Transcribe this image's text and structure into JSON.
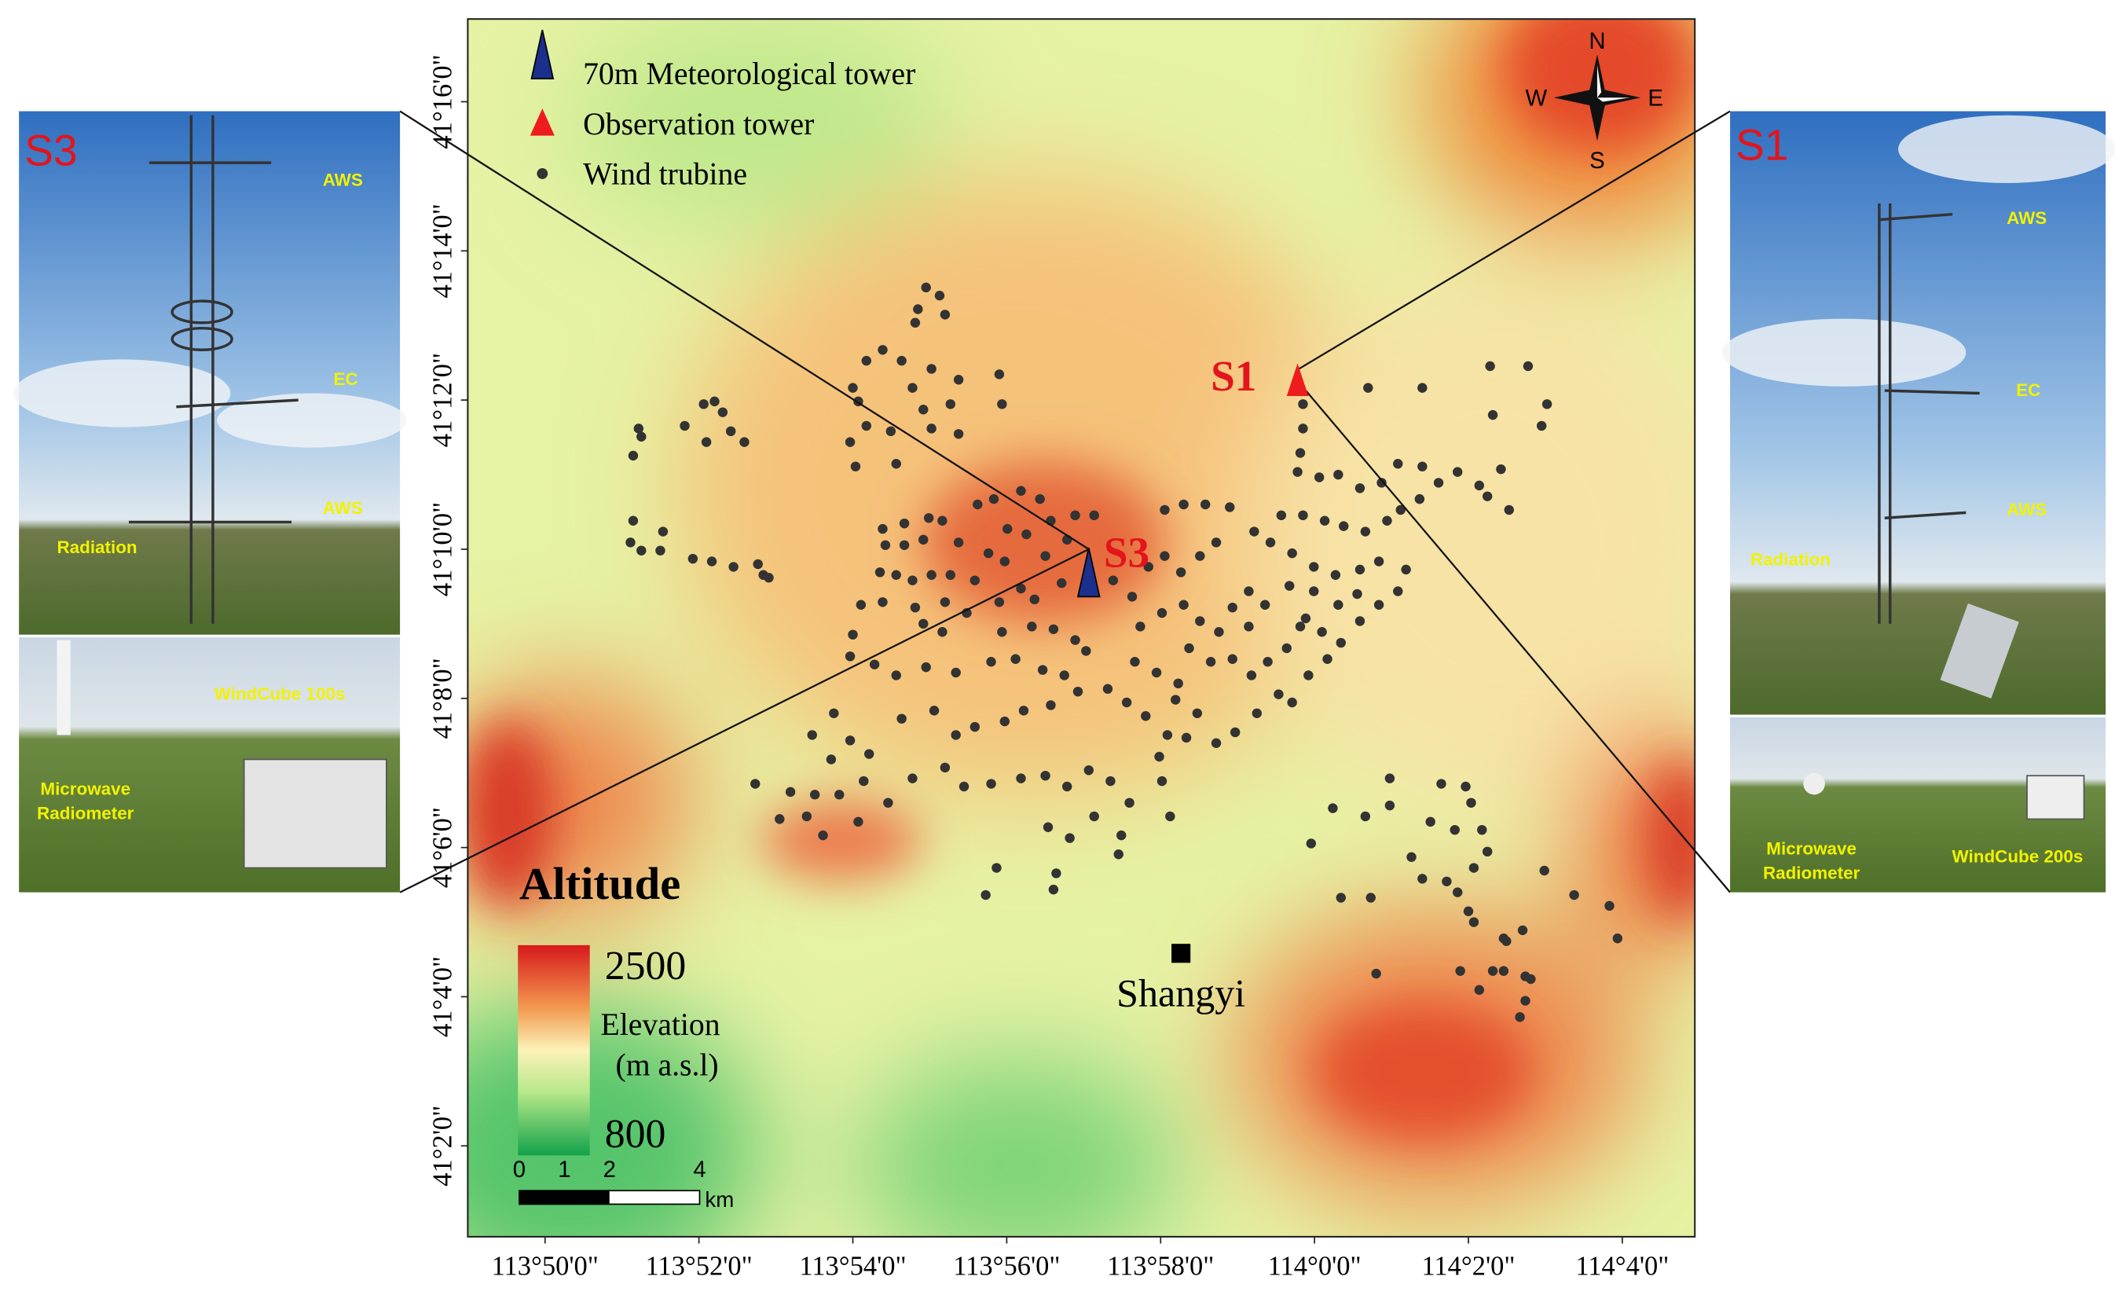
{
  "legend": {
    "items": [
      "70m Meteorological tower",
      "Observation tower",
      "Wind trubine"
    ]
  },
  "compass": {
    "n": "N",
    "s": "S",
    "w": "W",
    "e": "E"
  },
  "map_labels": {
    "s1": "S1",
    "s3": "S3",
    "town": "Shangyi"
  },
  "altitude": {
    "title": "Altitude",
    "max": 2500,
    "label": [
      "Elevation",
      "(m a.s.l)"
    ],
    "min": 800
  },
  "scale_bar": {
    "ticks": [
      0,
      1,
      2,
      4
    ],
    "unit": "km"
  },
  "axes": {
    "lat_ticks": [
      "41°16'0\"",
      "41°14'0\"",
      "41°12'0\"",
      "41°10'0\"",
      "41°8'0\"",
      "41°6'0\"",
      "41°4'0\"",
      "41°2'0\""
    ],
    "lon_ticks": [
      "113°50'0\"",
      "113°52'0\"",
      "113°54'0\"",
      "113°56'0\"",
      "113°58'0\"",
      "114°0'0\"",
      "114°2'0\"",
      "114°4'0\""
    ]
  },
  "panels": {
    "s3": {
      "label": "S3",
      "top": [
        "AWS",
        "EC",
        "AWS",
        "Radiation"
      ],
      "windcube": "WindCube 100s",
      "radiometer": [
        "Microwave",
        "Radiometer"
      ]
    },
    "s1": {
      "label": "S1",
      "top": [
        "AWS",
        "EC",
        "AWS",
        "Radiation"
      ],
      "windcube": "WindCube 200s",
      "radiometer": [
        "Microwave",
        "Radiometer"
      ]
    }
  }
}
